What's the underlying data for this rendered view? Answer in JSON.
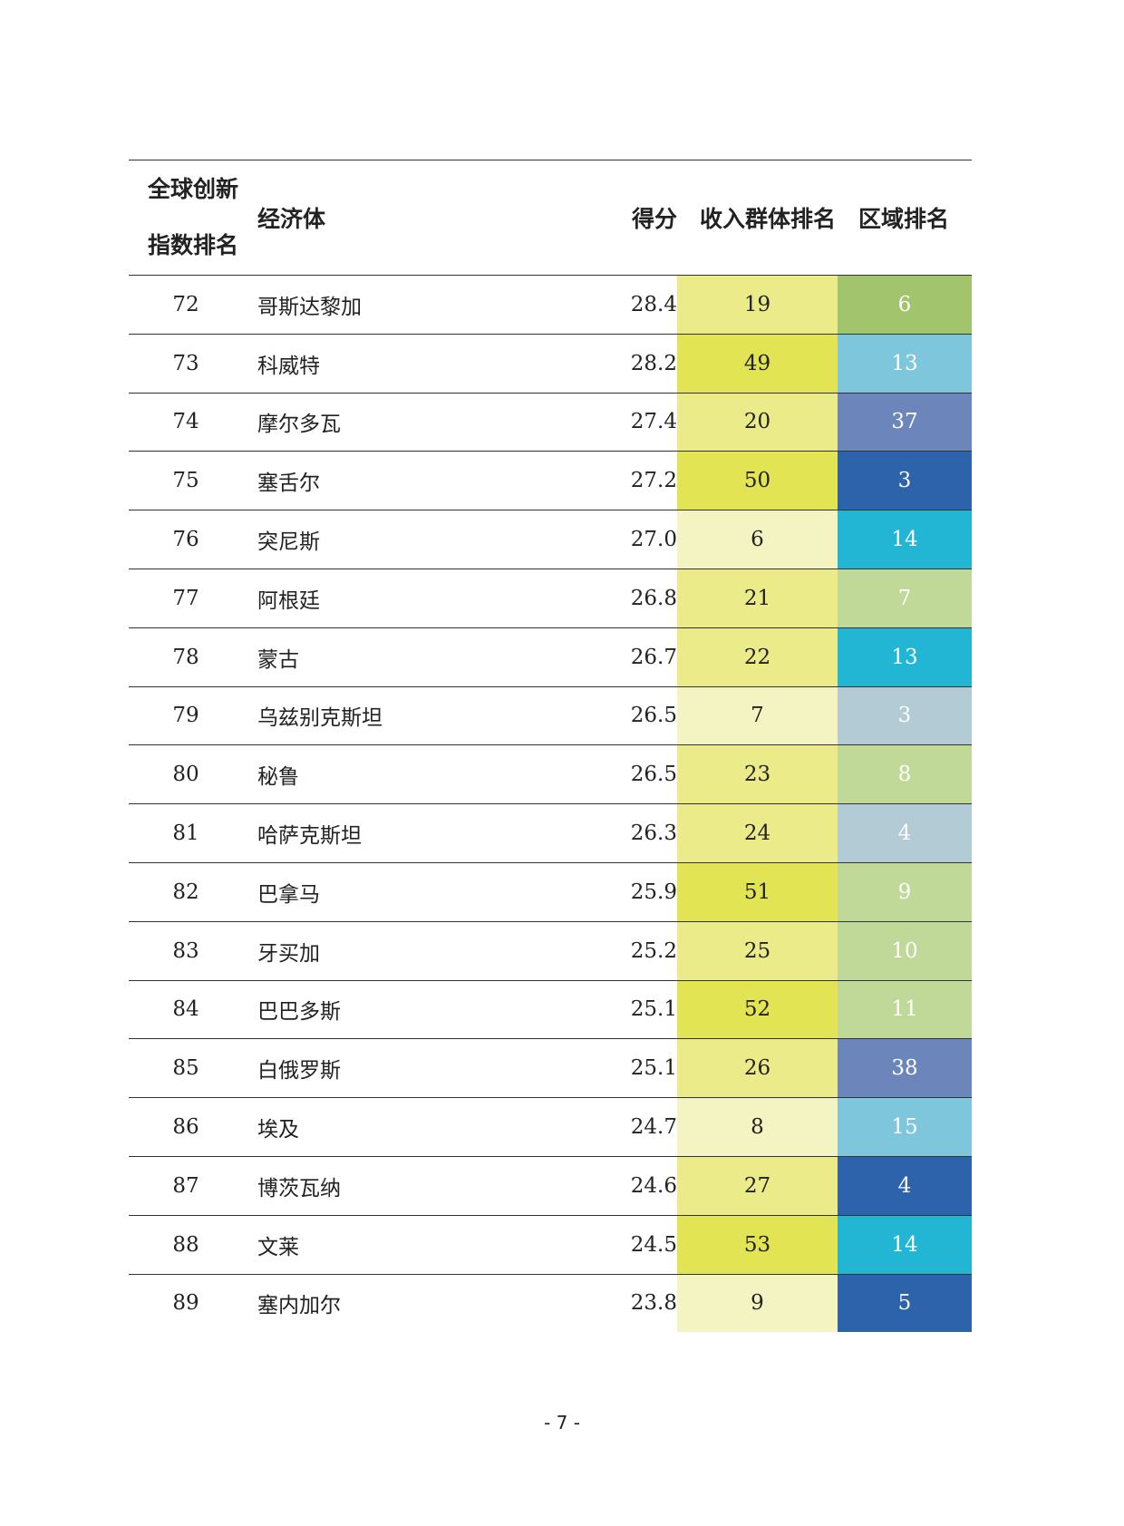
{
  "header": {
    "rank_line1": "全球创新",
    "rank_line2": "指数排名",
    "economy": "经济体",
    "score": "得分",
    "income_rank": "收入群体排名",
    "region_rank": "区域排名"
  },
  "rows": [
    {
      "rank": "72",
      "economy": "哥斯达黎加",
      "score": "28.4",
      "income_rank": "19",
      "region_rank": "6",
      "income_color": "#ebeb8a",
      "region_color": "#a2c46c",
      "region_text_color": "#ffffff"
    },
    {
      "rank": "73",
      "economy": "科威特",
      "score": "28.2",
      "income_rank": "49",
      "region_rank": "13",
      "income_color": "#e3e453",
      "region_color": "#7ec6dc",
      "region_text_color": "#ffffff"
    },
    {
      "rank": "74",
      "economy": "摩尔多瓦",
      "score": "27.4",
      "income_rank": "20",
      "region_rank": "37",
      "income_color": "#ebeb8a",
      "region_color": "#6c86bb",
      "region_text_color": "#ffffff"
    },
    {
      "rank": "75",
      "economy": "塞舌尔",
      "score": "27.2",
      "income_rank": "50",
      "region_rank": "3",
      "income_color": "#e3e453",
      "region_color": "#2d63ab",
      "region_text_color": "#ffffff"
    },
    {
      "rank": "76",
      "economy": "突尼斯",
      "score": "27.0",
      "income_rank": "6",
      "region_rank": "14",
      "income_color": "#f3f4c2",
      "region_color": "#23b5d4",
      "region_text_color": "#ffffff"
    },
    {
      "rank": "77",
      "economy": "阿根廷",
      "score": "26.8",
      "income_rank": "21",
      "region_rank": "7",
      "income_color": "#ebeb8a",
      "region_color": "#c1d998",
      "region_text_color": "#ffffff"
    },
    {
      "rank": "78",
      "economy": "蒙古",
      "score": "26.7",
      "income_rank": "22",
      "region_rank": "13",
      "income_color": "#ebeb8a",
      "region_color": "#23b5d4",
      "region_text_color": "#ffffff"
    },
    {
      "rank": "79",
      "economy": "乌兹别克斯坦",
      "score": "26.5",
      "income_rank": "7",
      "region_rank": "3",
      "income_color": "#f3f4c2",
      "region_color": "#b3cbd4",
      "region_text_color": "#ffffff"
    },
    {
      "rank": "80",
      "economy": "秘鲁",
      "score": "26.5",
      "income_rank": "23",
      "region_rank": "8",
      "income_color": "#ebeb8a",
      "region_color": "#c1d998",
      "region_text_color": "#ffffff"
    },
    {
      "rank": "81",
      "economy": "哈萨克斯坦",
      "score": "26.3",
      "income_rank": "24",
      "region_rank": "4",
      "income_color": "#ebeb8a",
      "region_color": "#b3cbd4",
      "region_text_color": "#ffffff"
    },
    {
      "rank": "82",
      "economy": "巴拿马",
      "score": "25.9",
      "income_rank": "51",
      "region_rank": "9",
      "income_color": "#e3e453",
      "region_color": "#c1d998",
      "region_text_color": "#ffffff"
    },
    {
      "rank": "83",
      "economy": "牙买加",
      "score": "25.2",
      "income_rank": "25",
      "region_rank": "10",
      "income_color": "#ebeb8a",
      "region_color": "#c1d998",
      "region_text_color": "#ffffff"
    },
    {
      "rank": "84",
      "economy": "巴巴多斯",
      "score": "25.1",
      "income_rank": "52",
      "region_rank": "11",
      "income_color": "#e3e453",
      "region_color": "#c1d998",
      "region_text_color": "#ffffff"
    },
    {
      "rank": "85",
      "economy": "白俄罗斯",
      "score": "25.1",
      "income_rank": "26",
      "region_rank": "38",
      "income_color": "#ebeb8a",
      "region_color": "#6c86bb",
      "region_text_color": "#ffffff"
    },
    {
      "rank": "86",
      "economy": "埃及",
      "score": "24.7",
      "income_rank": "8",
      "region_rank": "15",
      "income_color": "#f3f4c2",
      "region_color": "#7ec6dc",
      "region_text_color": "#ffffff"
    },
    {
      "rank": "87",
      "economy": "博茨瓦纳",
      "score": "24.6",
      "income_rank": "27",
      "region_rank": "4",
      "income_color": "#ebeb8a",
      "region_color": "#2d63ab",
      "region_text_color": "#ffffff"
    },
    {
      "rank": "88",
      "economy": "文莱",
      "score": "24.5",
      "income_rank": "53",
      "region_rank": "14",
      "income_color": "#e3e453",
      "region_color": "#23b5d4",
      "region_text_color": "#ffffff"
    },
    {
      "rank": "89",
      "economy": "塞内加尔",
      "score": "23.8",
      "income_rank": "9",
      "region_rank": "5",
      "income_color": "#f3f4c2",
      "region_color": "#2d63ab",
      "region_text_color": "#ffffff"
    }
  ],
  "footer": {
    "page_number": "- 7 -"
  }
}
